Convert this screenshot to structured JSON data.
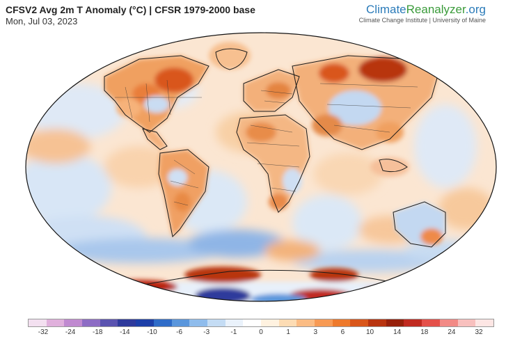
{
  "header": {
    "title": "CFSV2 Avg 2m T Anomaly (°C) | CFSR 1979-2000 base",
    "date": "Mon, Jul 03, 2023",
    "brand_part1": "Climate",
    "brand_part2": "Reanalyzer",
    "brand_part3": ".org",
    "tagline": "Climate Change Institute | University of Maine"
  },
  "colorbar": {
    "ticks": [
      "-32",
      "-24",
      "-18",
      "-14",
      "-10",
      "-6",
      "-3",
      "-1",
      "0",
      "1",
      "3",
      "6",
      "10",
      "14",
      "18",
      "24",
      "32"
    ],
    "colors": [
      "#f3e0f0",
      "#e0b0dc",
      "#c08ad0",
      "#8d6cc4",
      "#5a53b0",
      "#2e3a9c",
      "#1d3fa8",
      "#2f6cc8",
      "#5a96dc",
      "#8fbcec",
      "#c4dcf4",
      "#eaf2fb",
      "#ffffff",
      "#fff2e0",
      "#fddcb4",
      "#fbbc84",
      "#f79a54",
      "#ee7a2c",
      "#d9561a",
      "#b8340f",
      "#96200b",
      "#c02a20",
      "#e4504a",
      "#f28a86",
      "#f8c0be",
      "#fde6e4"
    ]
  }
}
